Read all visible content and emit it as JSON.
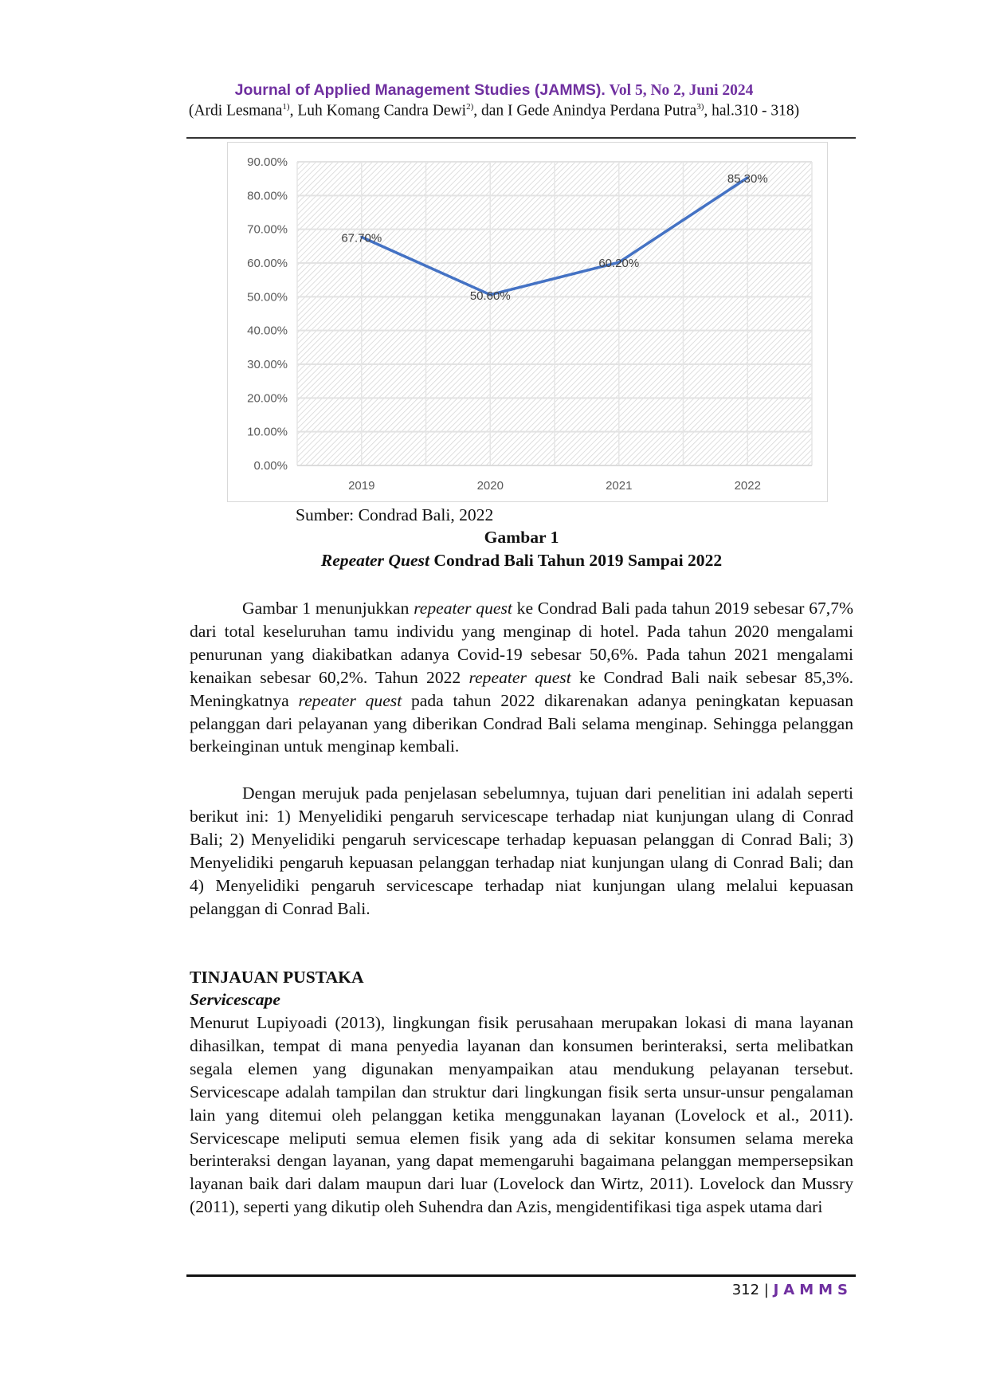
{
  "header": {
    "journal": "Journal of Applied Management Studies (JAMMS).",
    "volume": "Vol 5, No 2, Juni 2024",
    "authors_parts": [
      "(Ardi Lesmana",
      "1)",
      ", Luh Komang Candra Dewi",
      "2)",
      ", dan I Gede Anindya Perdana Putra",
      "3)",
      ", hal.310 - 318)"
    ]
  },
  "chart_data": {
    "type": "line",
    "categories": [
      "2019",
      "2020",
      "2021",
      "2022"
    ],
    "values": [
      67.7,
      50.6,
      60.2,
      85.3
    ],
    "data_labels": [
      "67.70%",
      "50.60%",
      "60.20%",
      "85.30%"
    ],
    "y_ticks": [
      "0.00%",
      "10.00%",
      "20.00%",
      "30.00%",
      "40.00%",
      "50.00%",
      "60.00%",
      "70.00%",
      "80.00%",
      "90.00%"
    ],
    "ylim": [
      0,
      90
    ],
    "grid": true,
    "line_color": "#4472c4",
    "title": "",
    "xlabel": "",
    "ylabel": ""
  },
  "figure": {
    "source": "Sumber: Condrad Bali, 2022",
    "label": "Gambar 1",
    "caption_italic": "Repeater Quest",
    "caption_rest": " Condrad Bali Tahun 2019 Sampai 2022"
  },
  "body": {
    "paragraphs": [
      [
        {
          "t": "Gambar 1 menunjukkan ",
          "i": false
        },
        {
          "t": "repeater quest",
          "i": true
        },
        {
          "t": " ke Condrad Bali pada tahun 2019 sebesar 67,7% dari total keseluruhan tamu individu yang menginap di hotel.  Pada tahun 2020 mengalami penurunan yang diakibatkan adanya Covid-19 sebesar 50,6%. Pada tahun 2021 mengalami kenaikan sebesar 60,2%. Tahun 2022 ",
          "i": false
        },
        {
          "t": "repeater quest",
          "i": true
        },
        {
          "t": " ke Condrad Bali naik sebesar 85,3%. Meningkatnya ",
          "i": false
        },
        {
          "t": "repeater quest",
          "i": true
        },
        {
          "t": " pada tahun 2022 dikarenakan adanya peningkatan kepuasan pelanggan dari pelayanan yang diberikan Condrad Bali selama menginap. Sehingga pelanggan berkeinginan untuk menginap kembali.",
          "i": false
        }
      ],
      [
        {
          "t": "Dengan merujuk pada penjelasan sebelumnya, tujuan dari penelitian ini adalah seperti berikut ini: 1) Menyelidiki pengaruh servicescape terhadap niat kunjungan ulang di Conrad Bali; 2) Menyelidiki pengaruh servicescape terhadap kepuasan pelanggan di Conrad Bali; 3) Menyelidiki pengaruh kepuasan pelanggan terhadap niat kunjungan ulang di Conrad Bali; dan 4) Menyelidiki pengaruh servicescape terhadap niat kunjungan ulang melalui kepuasan pelanggan di Conrad Bali.",
          "i": false
        }
      ]
    ],
    "section_heading": "TINJAUAN PUSTAKA",
    "subsection_heading": "Servicescape",
    "section_paragraph": "Menurut Lupiyoadi (2013), lingkungan fisik perusahaan merupakan lokasi di mana layanan dihasilkan, tempat di mana penyedia layanan dan konsumen berinteraksi, serta melibatkan segala elemen yang digunakan menyampaikan atau mendukung pelayanan tersebut. Servicescape adalah tampilan dan struktur dari lingkungan fisik serta unsur-unsur pengalaman lain yang ditemui oleh pelanggan ketika menggunakan layanan (Lovelock et al., 2011). Servicescape meliputi semua elemen fisik yang ada di sekitar konsumen selama mereka berinteraksi dengan layanan, yang dapat memengaruhi bagaimana pelanggan mempersepsikan layanan baik dari dalam maupun dari luar (Lovelock dan Wirtz, 2011). Lovelock dan Mussry (2011), seperti yang dikutip oleh Suhendra dan Azis, mengidentifikasi tiga aspek utama dari"
  },
  "footer": {
    "page": "312 | ",
    "journal": "JAMMS"
  }
}
